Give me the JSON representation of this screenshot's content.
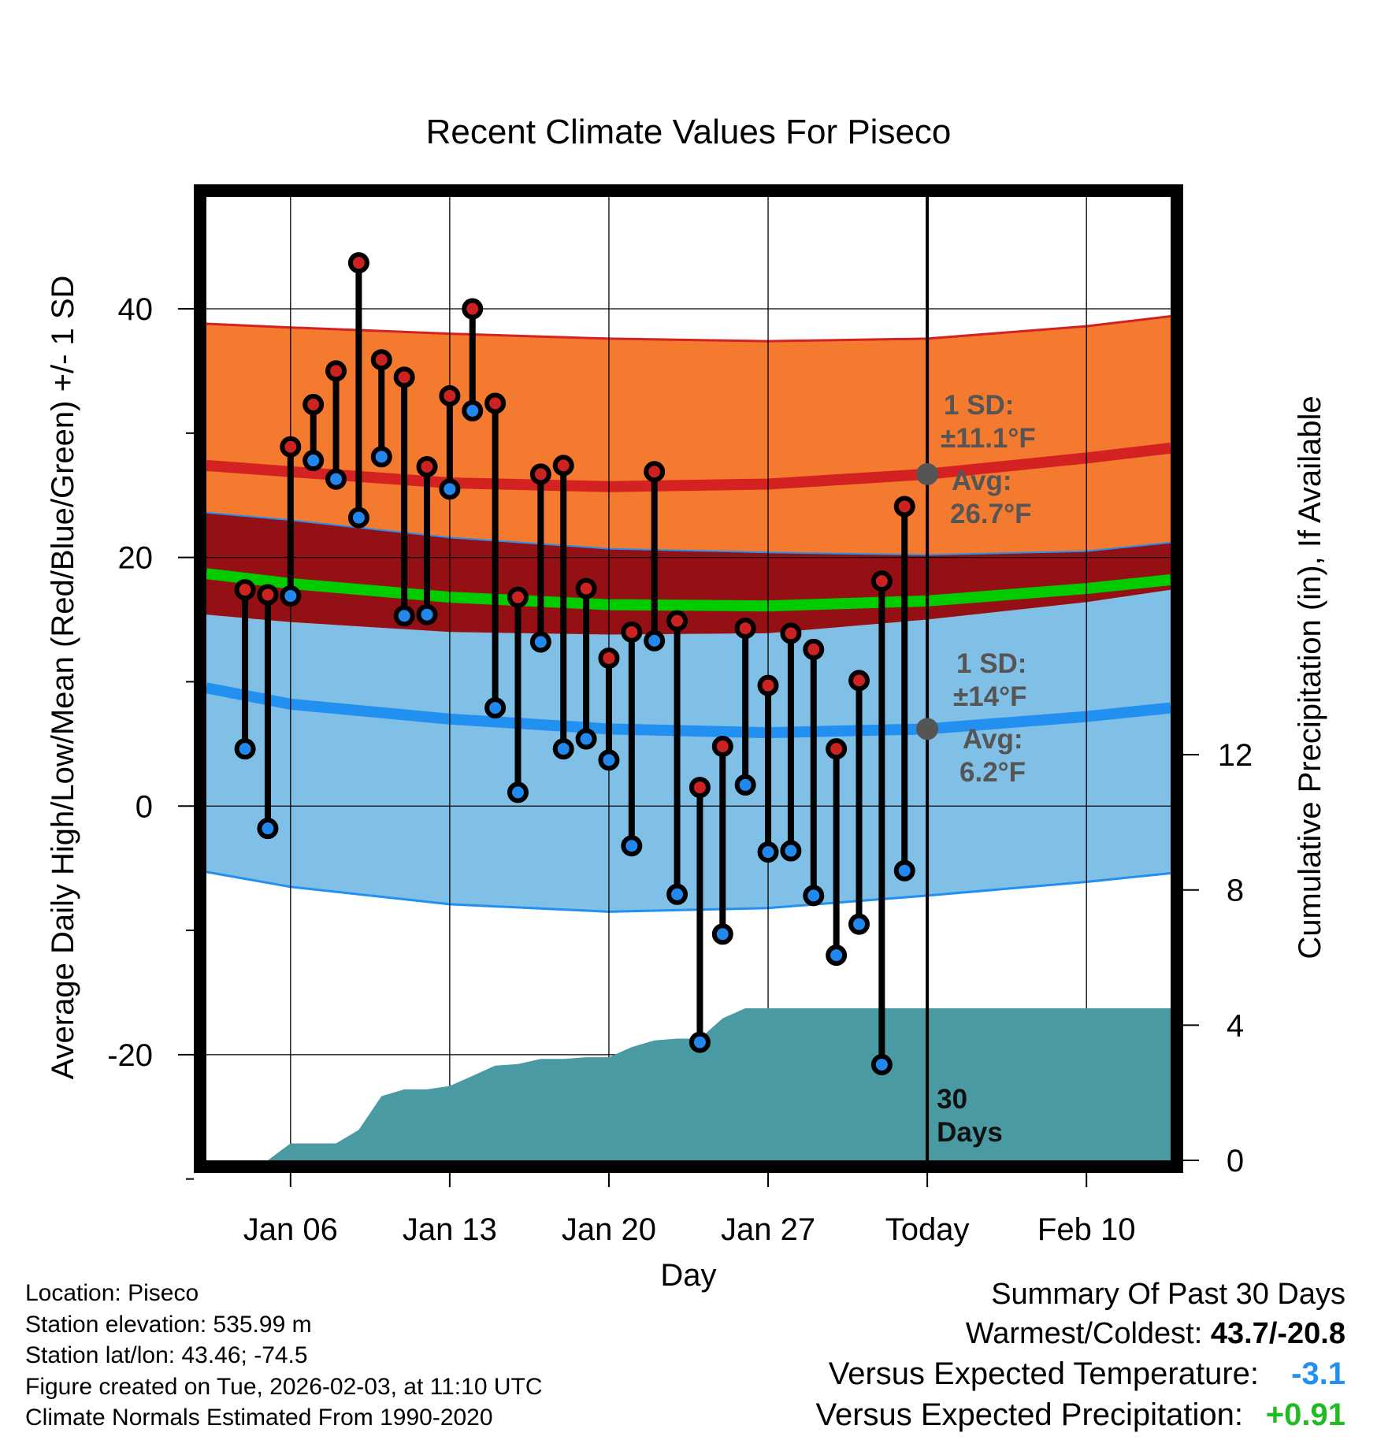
{
  "chart_data": {
    "type": "line",
    "title": "Recent Climate Values For Piseco",
    "xlabel": "Day",
    "ylabel": "Average Daily High/Low/Mean (Red/Blue/Green) +/- 1 SD",
    "y2label": "Cumulative Precipitation (in), If Available",
    "ylim": [
      -28.5,
      49
    ],
    "y2lim": [
      0,
      28.5
    ],
    "xlim": [
      2.3,
      44.7
    ],
    "yticks": [
      -20,
      0,
      20,
      40
    ],
    "y2ticks": [
      0,
      4,
      8,
      12
    ],
    "xticks": [
      {
        "day": 6,
        "label": "Jan 06"
      },
      {
        "day": 13,
        "label": "Jan 13"
      },
      {
        "day": 20,
        "label": "Jan 20"
      },
      {
        "day": 27,
        "label": "Jan 27"
      },
      {
        "day": 34,
        "label": "Today"
      },
      {
        "day": 41,
        "label": "Feb 10"
      }
    ],
    "today_day": 34,
    "days_label": [
      "30",
      "Days"
    ],
    "normals": {
      "x": [
        2.3,
        6,
        13,
        20,
        27,
        34,
        41,
        44.7
      ],
      "high_plus_sd": [
        38.8,
        38.5,
        38.0,
        37.6,
        37.4,
        37.6,
        38.6,
        39.4
      ],
      "high_avg": [
        27.4,
        26.9,
        26.0,
        25.7,
        25.9,
        26.7,
        28.0,
        28.8
      ],
      "high_minus_sd": [
        23.6,
        23.0,
        21.6,
        20.7,
        20.4,
        20.2,
        20.5,
        21.2
      ],
      "mean_avg": [
        18.7,
        17.9,
        16.8,
        16.2,
        16.1,
        16.5,
        17.5,
        18.2
      ],
      "low_plus_sd": [
        15.4,
        14.8,
        14.0,
        13.8,
        13.9,
        15.0,
        16.4,
        17.4
      ],
      "low_avg": [
        9.5,
        8.2,
        7.0,
        6.2,
        5.9,
        6.2,
        7.2,
        7.9
      ],
      "low_minus_sd": [
        -5.3,
        -6.5,
        -7.9,
        -8.5,
        -8.2,
        -7.2,
        -6.1,
        -5.4
      ]
    },
    "series": [
      {
        "name": "High",
        "color": "#cc2222",
        "values": [
          17.4,
          17.0,
          28.9,
          32.3,
          35.0,
          43.7,
          35.9,
          34.5,
          27.3,
          33.0,
          40.0,
          32.4,
          16.8,
          26.7,
          27.4,
          17.5,
          11.9,
          14.0,
          26.9,
          14.9,
          1.5,
          4.8,
          14.3,
          9.7,
          13.9,
          12.6,
          4.6,
          10.1,
          18.1,
          24.1
        ]
      },
      {
        "name": "Low",
        "color": "#2288ee",
        "values": [
          4.6,
          -1.8,
          16.9,
          27.8,
          26.3,
          23.2,
          28.1,
          15.3,
          15.4,
          25.5,
          31.8,
          7.9,
          1.1,
          13.2,
          4.6,
          5.4,
          3.7,
          -3.2,
          13.3,
          -7.1,
          -19.0,
          -10.3,
          1.7,
          -3.7,
          -3.6,
          -7.2,
          -12.0,
          -9.5,
          -20.8,
          -5.2
        ]
      }
    ],
    "x_days": [
      4,
      5,
      6,
      7,
      8,
      9,
      10,
      11,
      12,
      13,
      14,
      15,
      16,
      17,
      18,
      19,
      20,
      21,
      22,
      23,
      24,
      25,
      26,
      27,
      28,
      29,
      30,
      31,
      32,
      33
    ],
    "precip": {
      "x": [
        2.3,
        5,
        6,
        7,
        8,
        9,
        10,
        11,
        12,
        13,
        14,
        15,
        16,
        17,
        18,
        19,
        20,
        21,
        22,
        23,
        24,
        25,
        26,
        27,
        44.7
      ],
      "values": [
        0,
        0,
        0.5,
        0.5,
        0.5,
        0.9,
        1.9,
        2.1,
        2.1,
        2.2,
        2.5,
        2.8,
        2.85,
        3.0,
        3.0,
        3.05,
        3.05,
        3.35,
        3.55,
        3.6,
        3.6,
        4.2,
        4.5,
        4.5,
        4.5
      ]
    },
    "annotations": {
      "high": {
        "sd_line1": "1 SD:",
        "sd_line2": "±11.1°F",
        "avg_line1": "Avg:",
        "avg_line2": "26.7°F"
      },
      "low": {
        "sd_line1": "1 SD:",
        "sd_line2": "±14°F",
        "avg_line1": "Avg:",
        "avg_line2": "6.2°F"
      }
    },
    "colors": {
      "high_band": "#f47a30",
      "high_line": "#d42222",
      "dark_band": "#941014",
      "mean_line": "#00cc00",
      "low_band": "#80c0e6",
      "low_line": "#2290f0",
      "precip": "#4a9aa3",
      "marker_edge": "#000000",
      "avg_dot": "#555555"
    }
  },
  "info": {
    "location": "Location: Piseco",
    "elevation": "Station elevation: 535.99 m",
    "latlon": "Station lat/lon: 43.46; -74.5",
    "created": "Figure created on Tue, 2026-02-03, at 11:10 UTC",
    "normals": "Climate Normals Estimated From 1990-2020"
  },
  "summary": {
    "heading": "Summary Of Past 30 Days",
    "warm_cold_label": "Warmest/Coldest: ",
    "warm_cold_value": "43.7/-20.8",
    "temp_label": "Versus Expected Temperature:",
    "temp_value": "-3.1",
    "temp_color": "#2290f0",
    "precip_label": "Versus Expected Precipitation:",
    "precip_value": "+0.91",
    "precip_color": "#22bb22"
  }
}
